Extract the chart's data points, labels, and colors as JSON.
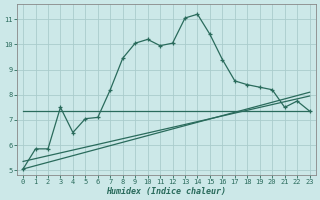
{
  "line1_x": [
    0,
    1,
    2,
    3,
    4,
    5,
    6,
    7,
    8,
    9,
    10,
    11,
    12,
    13,
    14,
    15,
    16,
    17,
    18,
    19,
    20,
    21,
    22,
    23
  ],
  "line1_y": [
    5.05,
    5.85,
    5.85,
    7.5,
    6.5,
    7.05,
    7.1,
    8.2,
    9.45,
    10.05,
    10.2,
    9.95,
    10.05,
    11.05,
    11.2,
    10.4,
    9.4,
    8.55,
    8.4,
    8.3,
    8.2,
    7.5,
    7.75,
    7.35
  ],
  "line2_x": [
    0,
    23
  ],
  "line2_y": [
    7.35,
    7.35
  ],
  "line3_x": [
    0,
    23
  ],
  "line3_y": [
    5.05,
    8.1
  ],
  "line4_x": [
    0,
    23
  ],
  "line4_y": [
    5.35,
    7.95
  ],
  "line_color": "#2a6b5c",
  "bg_color": "#cce8e8",
  "grid_color": "#aacccc",
  "xlabel": "Humidex (Indice chaleur)",
  "xlim": [
    -0.5,
    23.5
  ],
  "ylim": [
    4.8,
    11.6
  ],
  "yticks": [
    5,
    6,
    7,
    8,
    9,
    10,
    11
  ],
  "xticks": [
    0,
    1,
    2,
    3,
    4,
    5,
    6,
    7,
    8,
    9,
    10,
    11,
    12,
    13,
    14,
    15,
    16,
    17,
    18,
    19,
    20,
    21,
    22,
    23
  ]
}
